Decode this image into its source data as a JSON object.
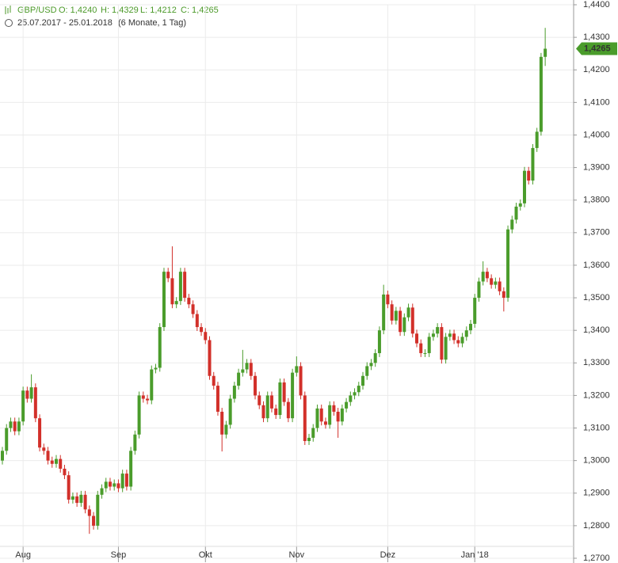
{
  "header": {
    "symbol": "GBP/USD",
    "open": "O: 1,4240",
    "high": "H: 1,4329",
    "low": "L: 1,4212",
    "close": "C: 1,4265",
    "range": "25.07.2017 - 25.01.2018",
    "period": "(6 Monate, 1 Tag)"
  },
  "chart_data": {
    "type": "candlestick",
    "categories": [
      null,
      null,
      null,
      null,
      null,
      "Aug",
      null,
      null,
      null,
      null,
      null,
      null,
      null,
      null,
      null,
      null,
      null,
      null,
      null,
      null,
      null,
      null,
      null,
      null,
      null,
      null,
      null,
      null,
      "Sep",
      null,
      null,
      null,
      null,
      null,
      null,
      null,
      null,
      null,
      null,
      null,
      null,
      null,
      null,
      null,
      null,
      null,
      null,
      null,
      null,
      "Okt",
      null,
      null,
      null,
      null,
      null,
      null,
      null,
      null,
      null,
      null,
      null,
      null,
      null,
      null,
      null,
      null,
      null,
      null,
      null,
      null,
      null,
      "Nov",
      null,
      null,
      null,
      null,
      null,
      null,
      null,
      null,
      null,
      null,
      null,
      null,
      null,
      null,
      null,
      null,
      null,
      null,
      null,
      null,
      null,
      "Dez",
      null,
      null,
      null,
      null,
      null,
      null,
      null,
      null,
      null,
      null,
      null,
      null,
      null,
      null,
      null,
      null,
      null,
      null,
      null,
      null,
      "Jan '18",
      null,
      null,
      null,
      null,
      null,
      null,
      null,
      null,
      null,
      null,
      null,
      null,
      null,
      null,
      null,
      null,
      null
    ],
    "open": [
      1.3,
      1.303,
      1.31,
      1.312,
      1.309,
      1.312,
      1.3215,
      1.319,
      1.3225,
      1.313,
      1.304,
      1.303,
      1.3,
      1.299,
      1.3005,
      1.2975,
      1.2955,
      1.288,
      1.289,
      1.287,
      1.2895,
      1.285,
      1.283,
      1.28,
      1.2895,
      1.2915,
      1.2935,
      1.292,
      1.293,
      1.2915,
      1.296,
      1.292,
      1.303,
      1.308,
      1.32,
      1.319,
      1.3185,
      1.328,
      1.3285,
      1.341,
      1.358,
      1.356,
      1.348,
      1.349,
      1.358,
      1.35,
      1.348,
      1.345,
      1.341,
      1.3395,
      1.337,
      1.326,
      1.323,
      1.315,
      1.308,
      1.311,
      1.319,
      1.323,
      1.327,
      1.328,
      1.33,
      1.326,
      1.32,
      1.317,
      1.313,
      1.32,
      1.316,
      1.314,
      1.324,
      1.318,
      1.313,
      1.327,
      1.329,
      1.32,
      1.306,
      1.307,
      1.31,
      1.316,
      1.312,
      1.311,
      1.317,
      1.315,
      1.312,
      1.316,
      1.318,
      1.32,
      1.321,
      1.323,
      1.326,
      1.329,
      1.33,
      1.333,
      1.34,
      1.351,
      1.348,
      1.343,
      1.346,
      1.3395,
      1.344,
      1.347,
      1.339,
      1.336,
      1.333,
      1.333,
      1.338,
      1.339,
      1.341,
      1.331,
      1.338,
      1.339,
      1.337,
      1.336,
      1.338,
      1.34,
      1.342,
      1.35,
      1.355,
      1.358,
      1.356,
      1.354,
      1.355,
      1.352,
      1.35,
      1.371,
      1.374,
      1.378,
      1.379,
      1.389,
      1.386,
      1.396,
      1.401,
      1.424
    ],
    "high": [
      1.3042,
      1.3112,
      1.3132,
      1.3132,
      1.3132,
      1.3227,
      1.3227,
      1.3265,
      1.3237,
      1.3142,
      1.3052,
      1.3042,
      1.3012,
      1.3017,
      1.3017,
      1.2987,
      1.2967,
      1.2902,
      1.2902,
      1.2907,
      1.2907,
      1.2862,
      1.2842,
      1.2907,
      1.2927,
      1.2947,
      1.2947,
      1.2942,
      1.2942,
      1.2972,
      1.2972,
      1.3042,
      1.3092,
      1.3212,
      1.3212,
      1.3202,
      1.3292,
      1.3297,
      1.3422,
      1.3592,
      1.3592,
      1.3658,
      1.3502,
      1.3592,
      1.3592,
      1.3512,
      1.3492,
      1.3462,
      1.3422,
      1.3407,
      1.3382,
      1.3272,
      1.3242,
      1.3162,
      1.3122,
      1.3202,
      1.3242,
      1.3282,
      1.334,
      1.3312,
      1.3312,
      1.3272,
      1.3212,
      1.3182,
      1.3212,
      1.3212,
      1.3172,
      1.3252,
      1.3252,
      1.3192,
      1.3282,
      1.332,
      1.3302,
      1.3212,
      1.3082,
      1.3112,
      1.3172,
      1.3172,
      1.3132,
      1.3182,
      1.3182,
      1.3162,
      1.3172,
      1.3192,
      1.3212,
      1.3222,
      1.3242,
      1.3272,
      1.3302,
      1.3312,
      1.3342,
      1.3412,
      1.354,
      1.3522,
      1.3492,
      1.3472,
      1.3472,
      1.3452,
      1.3482,
      1.3482,
      1.3402,
      1.3372,
      1.3342,
      1.3392,
      1.3402,
      1.3422,
      1.3422,
      1.3392,
      1.3402,
      1.3402,
      1.3382,
      1.3392,
      1.3412,
      1.3432,
      1.3512,
      1.3562,
      1.3612,
      1.3592,
      1.3572,
      1.3562,
      1.3562,
      1.3532,
      1.3722,
      1.3752,
      1.3792,
      1.3802,
      1.3902,
      1.3902,
      1.3972,
      1.4022,
      1.4252,
      1.4329
    ],
    "low": [
      1.2988,
      1.3018,
      1.3088,
      1.3078,
      1.3078,
      1.3108,
      1.3178,
      1.3178,
      1.3118,
      1.3028,
      1.3018,
      1.2988,
      1.2978,
      1.2978,
      1.2963,
      1.2943,
      1.2868,
      1.2868,
      1.2858,
      1.2858,
      1.2838,
      1.2775,
      1.2788,
      1.2788,
      1.2883,
      1.2903,
      1.2908,
      1.2908,
      1.2903,
      1.2903,
      1.2908,
      1.2908,
      1.3018,
      1.3068,
      1.3178,
      1.3173,
      1.3173,
      1.3268,
      1.3273,
      1.3398,
      1.3548,
      1.3468,
      1.3468,
      1.3478,
      1.3488,
      1.3468,
      1.3438,
      1.3398,
      1.3383,
      1.3358,
      1.3248,
      1.3218,
      1.3138,
      1.3028,
      1.3068,
      1.3098,
      1.3178,
      1.3218,
      1.3258,
      1.3268,
      1.3248,
      1.3188,
      1.3158,
      1.3118,
      1.3118,
      1.3148,
      1.3128,
      1.3128,
      1.3168,
      1.3118,
      1.3118,
      1.3258,
      1.3188,
      1.3048,
      1.3048,
      1.3058,
      1.3088,
      1.3108,
      1.3098,
      1.3098,
      1.3138,
      1.307,
      1.3108,
      1.3148,
      1.3168,
      1.3188,
      1.3198,
      1.3218,
      1.3248,
      1.3278,
      1.3288,
      1.3318,
      1.3388,
      1.3468,
      1.3418,
      1.3418,
      1.3383,
      1.3383,
      1.3428,
      1.3378,
      1.3348,
      1.3318,
      1.3318,
      1.3318,
      1.3368,
      1.3378,
      1.3298,
      1.3298,
      1.3368,
      1.3358,
      1.3348,
      1.3348,
      1.3368,
      1.3388,
      1.3408,
      1.3488,
      1.3538,
      1.3548,
      1.3528,
      1.3528,
      1.3508,
      1.3458,
      1.3488,
      1.3698,
      1.3728,
      1.3768,
      1.3778,
      1.3848,
      1.3848,
      1.3948,
      1.3998,
      1.4212
    ],
    "close": [
      1.303,
      1.31,
      1.312,
      1.309,
      1.312,
      1.3215,
      1.319,
      1.3225,
      1.313,
      1.304,
      1.303,
      1.3,
      1.299,
      1.3005,
      1.2975,
      1.2955,
      1.288,
      1.289,
      1.287,
      1.2895,
      1.285,
      1.283,
      1.28,
      1.2895,
      1.2915,
      1.2935,
      1.292,
      1.293,
      1.2915,
      1.296,
      1.292,
      1.303,
      1.308,
      1.32,
      1.319,
      1.3185,
      1.328,
      1.3285,
      1.341,
      1.358,
      1.356,
      1.348,
      1.349,
      1.358,
      1.35,
      1.348,
      1.345,
      1.341,
      1.3395,
      1.337,
      1.326,
      1.323,
      1.315,
      1.308,
      1.311,
      1.319,
      1.323,
      1.327,
      1.328,
      1.33,
      1.326,
      1.32,
      1.317,
      1.313,
      1.32,
      1.316,
      1.314,
      1.324,
      1.318,
      1.313,
      1.327,
      1.329,
      1.32,
      1.306,
      1.307,
      1.31,
      1.316,
      1.312,
      1.311,
      1.317,
      1.315,
      1.312,
      1.316,
      1.318,
      1.32,
      1.321,
      1.323,
      1.326,
      1.329,
      1.33,
      1.333,
      1.34,
      1.351,
      1.348,
      1.343,
      1.346,
      1.3395,
      1.344,
      1.347,
      1.339,
      1.336,
      1.333,
      1.333,
      1.338,
      1.339,
      1.341,
      1.331,
      1.338,
      1.339,
      1.337,
      1.336,
      1.338,
      1.34,
      1.342,
      1.35,
      1.355,
      1.358,
      1.356,
      1.354,
      1.355,
      1.352,
      1.35,
      1.371,
      1.374,
      1.378,
      1.379,
      1.389,
      1.386,
      1.396,
      1.401,
      1.424,
      1.4265
    ],
    "up_color": "#4a9c2b",
    "down_color": "#d2302a",
    "ylim": [
      1.27,
      1.44
    ],
    "yticks": [
      {
        "value": 1.27,
        "label": "1,2700"
      },
      {
        "value": 1.28,
        "label": "1,2800"
      },
      {
        "value": 1.29,
        "label": "1,2900"
      },
      {
        "value": 1.3,
        "label": "1,3000"
      },
      {
        "value": 1.31,
        "label": "1,3100"
      },
      {
        "value": 1.32,
        "label": "1,3200"
      },
      {
        "value": 1.33,
        "label": "1,3300"
      },
      {
        "value": 1.34,
        "label": "1,3400"
      },
      {
        "value": 1.35,
        "label": "1,3500"
      },
      {
        "value": 1.36,
        "label": "1,3600"
      },
      {
        "value": 1.37,
        "label": "1,3700"
      },
      {
        "value": 1.38,
        "label": "1,3800"
      },
      {
        "value": 1.39,
        "label": "1,3900"
      },
      {
        "value": 1.4,
        "label": "1,4000"
      },
      {
        "value": 1.41,
        "label": "1,4100"
      },
      {
        "value": 1.42,
        "label": "1,4200"
      },
      {
        "value": 1.43,
        "label": "1,4300"
      },
      {
        "value": 1.44,
        "label": "1,4400"
      }
    ],
    "last_price": {
      "value": 1.4265,
      "label": "1,4265"
    },
    "grid": true
  }
}
